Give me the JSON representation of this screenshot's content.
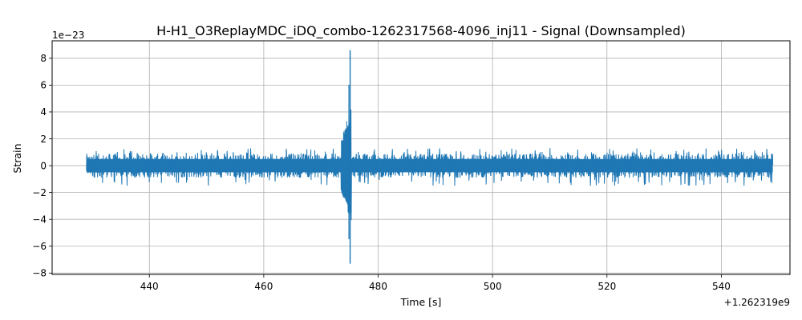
{
  "chart_data": {
    "type": "line",
    "title": "H-H1_O3ReplayMDC_iDQ_combo-1262317568-4096_inj11 - Signal (Downsampled)",
    "xlabel": "Time [s]",
    "ylabel": "Strain",
    "x_offset_text": "+1.262319e9",
    "y_offset_text": "1e−23",
    "xlim": [
      423,
      552
    ],
    "ylim": [
      -8.1,
      9.3
    ],
    "xticks": [
      440,
      460,
      480,
      500,
      520,
      540
    ],
    "yticks": [
      -8,
      -6,
      -4,
      -2,
      0,
      2,
      4,
      6,
      8
    ],
    "ytick_labels": [
      "−8",
      "−6",
      "−4",
      "−2",
      "0",
      "2",
      "4",
      "6",
      "8"
    ],
    "grid": true,
    "legend": "none",
    "series": [
      {
        "color": "#1f77b4",
        "x_start": 429,
        "x_end": 549,
        "background_envelope": [
          -0.9,
          0.9
        ],
        "background_peak_envelope": [
          -1.5,
          1.3
        ],
        "burst": {
          "x_range": [
            473.5,
            475.3
          ],
          "envelope_start": [
            -2.0,
            2.0
          ],
          "envelope_end": [
            -4.7,
            4.5
          ],
          "peak_max": 8.6,
          "peak_min": -7.3,
          "peak_x": 475.1
        }
      }
    ]
  }
}
